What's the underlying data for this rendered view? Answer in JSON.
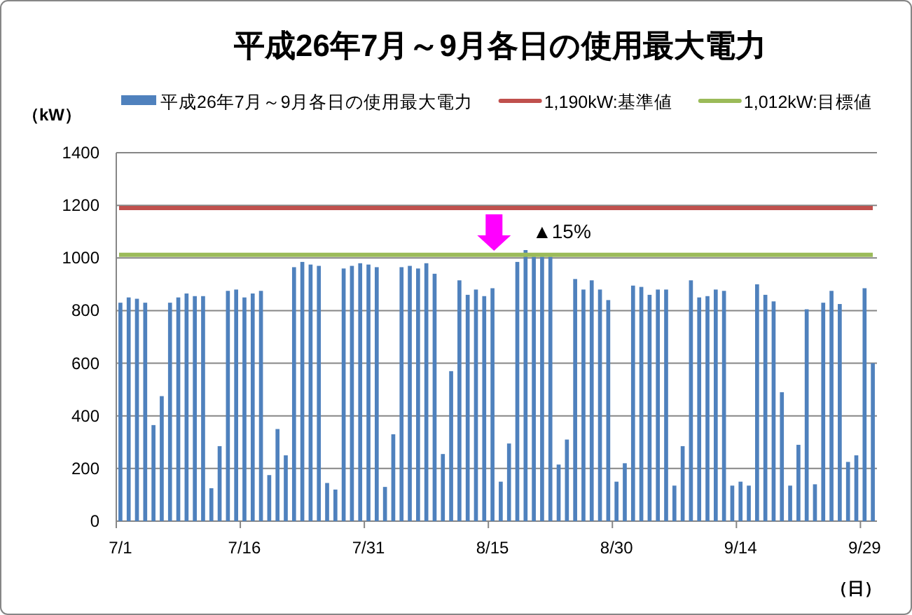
{
  "chart_data": {
    "type": "bar",
    "title": "平成26年7月～9月各日の使用最大電力",
    "ylabel": "（kW）",
    "xlabel": "（日）",
    "categories": [
      "7/1",
      null,
      null,
      null,
      null,
      null,
      null,
      null,
      null,
      null,
      null,
      null,
      null,
      null,
      null,
      "7/16",
      null,
      null,
      null,
      null,
      null,
      null,
      null,
      null,
      null,
      null,
      null,
      null,
      null,
      null,
      "7/31",
      null,
      null,
      null,
      null,
      null,
      null,
      null,
      null,
      null,
      null,
      null,
      null,
      null,
      null,
      "8/15",
      null,
      null,
      null,
      null,
      null,
      null,
      null,
      null,
      null,
      null,
      null,
      null,
      null,
      null,
      "8/30",
      null,
      null,
      null,
      null,
      null,
      null,
      null,
      null,
      null,
      null,
      null,
      null,
      null,
      null,
      "9/14",
      null,
      null,
      null,
      null,
      null,
      null,
      null,
      null,
      null,
      null,
      null,
      null,
      null,
      null,
      "9/29",
      null
    ],
    "series": [
      {
        "name": "平成26年7月～9月各日の使用最大電力",
        "color": "#4f81bd",
        "values": [
          830,
          850,
          845,
          830,
          365,
          475,
          830,
          850,
          865,
          855,
          855,
          125,
          285,
          875,
          880,
          850,
          865,
          875,
          175,
          350,
          250,
          965,
          985,
          975,
          970,
          145,
          120,
          960,
          970,
          980,
          975,
          965,
          130,
          330,
          965,
          970,
          960,
          980,
          940,
          255,
          570,
          915,
          860,
          880,
          855,
          885,
          150,
          295,
          985,
          1030,
          1005,
          1005,
          1005,
          215,
          310,
          920,
          880,
          915,
          880,
          840,
          150,
          220,
          895,
          890,
          860,
          880,
          880,
          135,
          285,
          915,
          850,
          855,
          880,
          875,
          135,
          150,
          135,
          900,
          860,
          835,
          490,
          135,
          290,
          805,
          140,
          830,
          875,
          825,
          225,
          250,
          885,
          600
        ]
      }
    ],
    "ylim": [
      0,
      1400
    ],
    "yticks": [
      0,
      200,
      400,
      600,
      800,
      1000,
      1200,
      1400
    ],
    "grid": "y",
    "legend": "top",
    "ref_lines": [
      {
        "axis": "y",
        "value": 1190,
        "label": "1,190kW:基準値",
        "color": "#c0504d"
      },
      {
        "axis": "y",
        "value": 1012,
        "label": "1,012kW:目標値",
        "color": "#9bbb59"
      }
    ],
    "annotations": [
      "▲15%"
    ]
  }
}
